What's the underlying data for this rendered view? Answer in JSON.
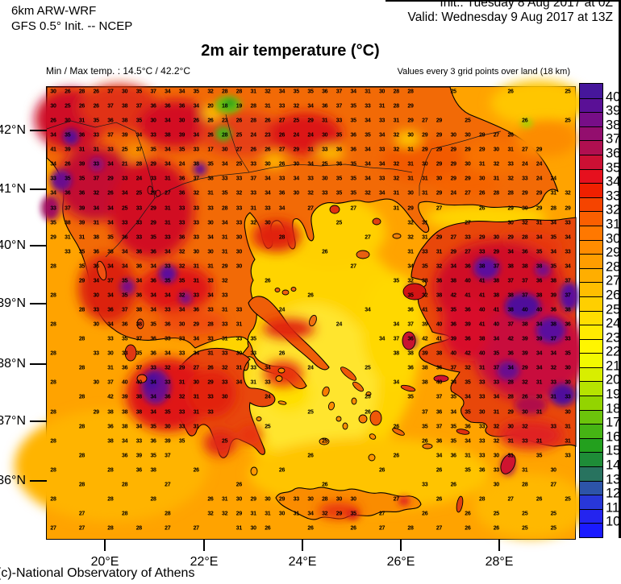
{
  "header": {
    "model_line1": "6km ARW-WRF",
    "model_line2": "GFS 0.5° Init. -- NCEP",
    "init_line": "Init.:  Tuesday 8 Aug 2017 at 0Z",
    "valid_line": "Valid: Wednesday 9 Aug 2017 at 13Z",
    "title": "2m air temperature (°C)",
    "minmax": "Min / Max temp. : 14.5°C / 42.2°C",
    "grid_note": "Values every 3 grid points over land (18 km)"
  },
  "axes": {
    "lat_labels": [
      "42°N",
      "41°N",
      "40°N",
      "39°N",
      "38°N",
      "37°N",
      "36°N"
    ],
    "lon_labels": [
      "20°E",
      "22°E",
      "24°E",
      "26°E",
      "28°E"
    ]
  },
  "colorbar": {
    "labels": [
      "40",
      "39",
      "38",
      "37",
      "36",
      "35",
      "34",
      "33",
      "32",
      "31",
      "30",
      "29",
      "28",
      "27",
      "26",
      "25",
      "24",
      "23",
      "22",
      "21",
      "20",
      "19",
      "18",
      "17",
      "16",
      "15",
      "14",
      "13",
      "12",
      "11",
      "10"
    ],
    "colors": [
      "#46169b",
      "#5a1096",
      "#770e87",
      "#930e6e",
      "#b00f50",
      "#cc1034",
      "#e6101e",
      "#f02000",
      "#f54400",
      "#fa5f00",
      "#ff7800",
      "#ff8c00",
      "#ff9d00",
      "#ffae00",
      "#ffbe00",
      "#ffcf00",
      "#ffde00",
      "#ffea00",
      "#fff600",
      "#f2f900",
      "#d8ee00",
      "#b6e300",
      "#93d400",
      "#6cc40b",
      "#46b414",
      "#23a01e",
      "#1e8c37",
      "#28735f",
      "#2d54a8",
      "#2837d8",
      "#2424ef",
      "#1a1aff"
    ]
  },
  "footer": {
    "credit": "(c)-National Observatory of Athens"
  },
  "chart_data": {
    "type": "heatmap",
    "title": "2m air temperature (°C)",
    "units": "°C",
    "model": "6km ARW-WRF, GFS 0.5° Init. -- NCEP",
    "init_time": "Tuesday 8 Aug 2017 at 0Z",
    "valid_time": "Wednesday 9 Aug 2017 at 13Z",
    "min_temp": 14.5,
    "max_temp": 42.2,
    "colorbar_range": [
      10,
      40
    ],
    "lat_ticks": [
      "42°N",
      "41°N",
      "40°N",
      "39°N",
      "38°N",
      "37°N",
      "36°N"
    ],
    "lon_ticks": [
      "20°E",
      "22°E",
      "24°E",
      "26°E",
      "28°E"
    ],
    "note": "Values every 3 grid points over land (18 km)",
    "grid_rows": [
      "30 26 28 26 37 30 35 37 34 34 35 32 28 28 31 32 34 35 35 36 37 34 31 30 28 28 . . 25 . . . 26 . . . 25",
      "30 25 26 26 37 38 37 36 36 36 34 20 18 19 28 31 33 32 34 36 37 35 33 31 28 29 . . . . . . . . . . .",
      "26 30 31 35 36 38 35 30 34 30 26 26 23 26 28 26 27 25 29 31 33 35 34 33 31 29 27 29 . 25 . . . 26 . . 25",
      "34 35 36 33 37 39 34 33 38 39 34 26 28 25 24 23 26 24 24 30 35 36 35 34 32 30 29 29 30 30 29 27 26 . . . .",
      "41 39 31 31 33 25 37 35 34 35 33 17 30 27 26 26 27 29 31 33 36 36 34 33 32 31 29 29 29 29 29 30 31 27 29 . .",
      "34 26 39 33 34 21 28 29 34 24 38 35 34 25 33 30 26 30 34 25 36 35 34 34 32 31 30 29 29 30 31 32 33 24 24 . .",
      "33 35 35 37 29 33 24 33 31 36 37 38 33 33 37 34 33 34 33 30 35 35 34 33 32 31 31 30 29 29 30 31 32 33 24 24 .",
      "34 36 36 32 26 34 25 29 27 36 32 31 35 32 33 34 36 30 32 33 35 35 32 34 31 30 31 29 24 27 26 28 28 29 29 31 32",
      "33 37 39 34 34 25 33 29 31 33 33 33 28 33 31 33 34 . 27 . . 27 . . 31 29 . 27 . . 26 . 29 30 29 28 29",
      "35 38 39 31 34 33 33 29 31 33 33 30 34 33 32 30 . . . . 25 . . . . 32 31 . . 27 . . 30 32 31 34 33",
      "29 31 31 38 35 36 33 35 33 36 33 34 31 30 . . 28 . . . . . 27 . . 32 31 29 27 33 29 30 29 28 34 35 34",
      ". 33 35 36 38 34 36 36 34 32 30 30 31 30 . . . . . 26 . . . . . 31 33 31 29 27 33 29 34 36 35 34 33",
      "28 . 35 36 34 34 36 34 33 32 31 31 29 30 . . . . . . . 27 . . . 34 35 32 34 36 38 37 38 38 38 35 34",
      ". . 29 34 37 35 34 36 35 35 31 33 32 . . 26 . . . . . . . . 35 32 38 36 38 40 41 38 37 37 36 38 37",
      "28 . . 30 34 35 36 34 34 32 33 34 33 . . . . . 26 . . . . . . 35 32 38 42 41 41 38 38 37 38 39 37",
      ". . 28 33 36 37 38 34 33 34 36 33 31 33 . . 24 . . . . . 34 . . 36 41 38 35 36 40 41 38 40 40 36 38",
      "28 . . 30 34 36 38 35 36 30 29 28 33 31 . . . . . . 24 . . . 34 37 39 40 36 39 41 40 37 38 34 38 36",
      ". . 28 . 33 35 37 36 33 33 34 33 31 33 35 . . . . . . . . 34 37 36 42 41 39 36 38 34 42 39 39 37 33",
      "28 . . 33 30 33 35 36 34 33 34 31 33 30 33 . 26 . . . . . . . 38 38 39 38 40 42 40 35 36 39 34 34 35",
      ". . 28 . 31 36 37 33 32 29 27 26 32 31 33 34 . . 24 . . . 25 . . 36 38 36 37 32 31 37 34 29 34 32 30",
      "28 . . 30 37 40 40 34 33 31 30 29 33 34 31 33 . . . . . . . . 34 . 38 40 34 35 33 33 28 32 31 33 30",
      ". . 28 . 42 39 38 34 36 32 31 33 30 . . 24 . . . . . . 25 . . 35 . 37 35 34 33 34 28 26 30 31 33",
      "28 . . 29 38 38 38 34 35 33 31 33 . . . . . . 25 . . . 26 . . . 37 36 34 35 30 31 29 30 31 . 30",
      ". . 28 . 36 38 34 35 30 33 31 . . . . 25 . . . . . . . . 26 . 35 37 35 36 33 32 30 32 . 33 31",
      "28 . . . 38 34 33 36 39 35 . . 25 . . . . . . 25 . . . . . . 26 36 35 34 33 32 31 33 31 . 31",
      ". . 28 . . 36 39 35 37 . . . . . . . . . 26 . . . . . 26 . . 34 36 31 33 30 31 . 35 . 33",
      "28 . . . 28 . 36 38 . . 26 . . . . . 26 . . . . . . 26 . . . 26 . 35 36 33 . 31 . 30 .",
      ". . 28 . . 28 . . 27 . . . . 26 . . . . . 26 . . . . . . 33 . 26 . . 30 . 28 . 27 .",
      "28 . . . 28 . . 28 . . . 26 31 30 29 30 29 33 30 28 30 30 . . 27 . . 26 . . 28 . 27 . 26 . 25",
      ". . 27 . . 28 . . 28 . . 32 32 29 31 31 30 31 34 32 29 35 . 27 . . 26 . . 26 . 25 . 25 . 25 .",
      "27 . 27 . 28 . 28 . 27 . 27 . . 31 30 26 . . 26 . . 26 . 27 . 28 . 27 . 26 . 26 . 25 . 25 ."
    ]
  }
}
